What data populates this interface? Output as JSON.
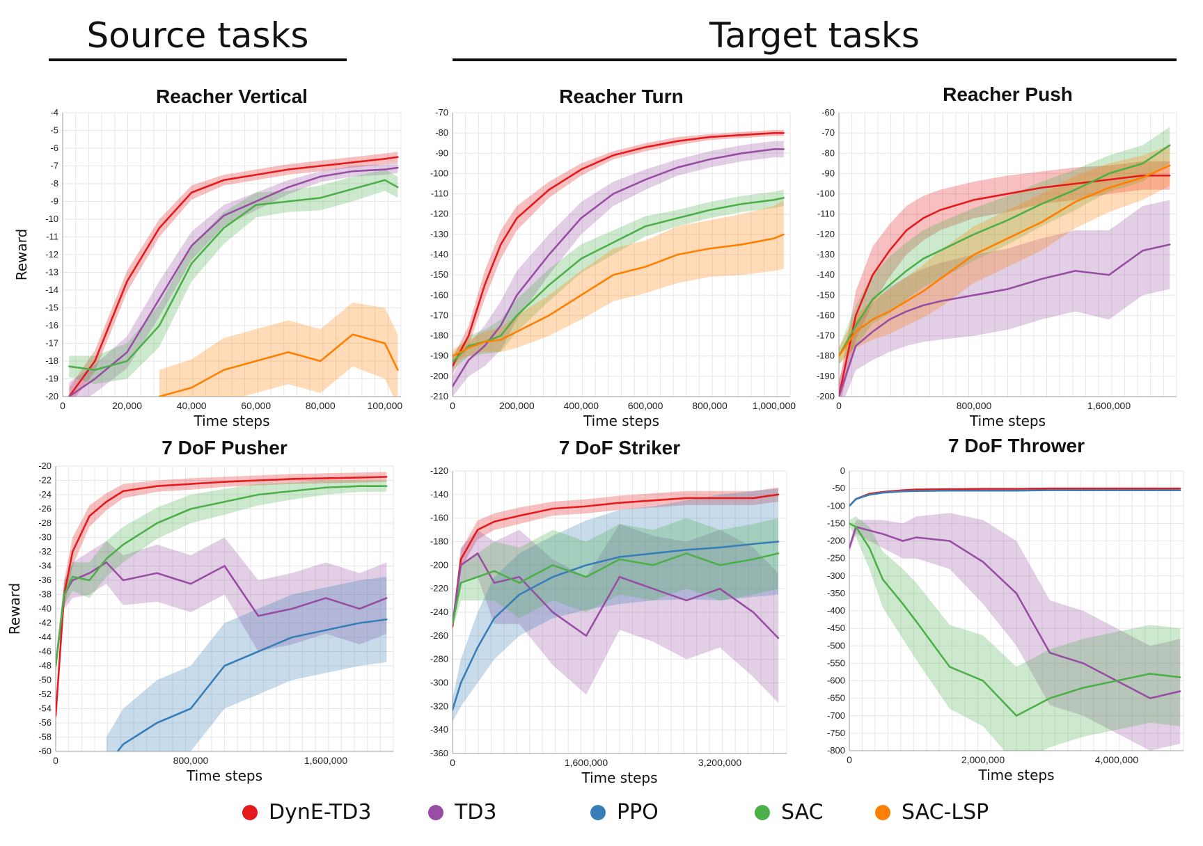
{
  "headers": {
    "source": "Source tasks",
    "target": "Target tasks"
  },
  "legend": [
    {
      "label": "DynE-TD3",
      "color": "#e41a1c"
    },
    {
      "label": "TD3",
      "color": "#984ea3"
    },
    {
      "label": "PPO",
      "color": "#377eb8"
    },
    {
      "label": "SAC",
      "color": "#4daf4a"
    },
    {
      "label": "SAC-LSP",
      "color": "#ff7f00"
    }
  ],
  "colors": {
    "DynE-TD3": "#e41a1c",
    "TD3": "#984ea3",
    "PPO": "#377eb8",
    "SAC": "#4daf4a",
    "SAC-LSP": "#ff7f00"
  },
  "chart_data": [
    {
      "type": "line",
      "title": "Reacher Vertical",
      "xlabel": "Time steps",
      "ylabel": "Reward",
      "xlim": [
        0,
        105000
      ],
      "ylim": [
        -20,
        -4
      ],
      "xticks": [
        0,
        20000,
        40000,
        60000,
        80000,
        100000
      ],
      "xtick_labels": [
        "0",
        "20,000",
        "40,000",
        "60,000",
        "80,000",
        "100,000"
      ],
      "yticks": [
        -4,
        -5,
        -6,
        -7,
        -8,
        -9,
        -10,
        -11,
        -12,
        -13,
        -14,
        -15,
        -16,
        -17,
        -18,
        -19,
        -20
      ],
      "grid": true,
      "x": [
        2000,
        10000,
        20000,
        30000,
        40000,
        50000,
        60000,
        70000,
        80000,
        90000,
        100000,
        104000
      ],
      "series": [
        {
          "name": "DynE-TD3",
          "values": [
            -20,
            -18,
            -13.5,
            -10.5,
            -8.5,
            -7.8,
            -7.5,
            -7.2,
            -7,
            -6.8,
            -6.6,
            -6.5
          ],
          "spread": [
            0.5,
            0.6,
            0.6,
            0.5,
            0.4,
            0.3,
            0.3,
            0.3,
            0.3,
            0.3,
            0.3,
            0.3
          ]
        },
        {
          "name": "TD3",
          "values": [
            -20,
            -19,
            -17.5,
            -14.5,
            -11.5,
            -9.8,
            -9,
            -8.2,
            -7.6,
            -7.3,
            -7.2,
            -7.1
          ],
          "spread": [
            0.8,
            0.8,
            0.9,
            1,
            0.8,
            0.6,
            0.5,
            0.4,
            0.3,
            0.3,
            0.3,
            0.3
          ]
        },
        {
          "name": "SAC",
          "values": [
            -18.3,
            -18.5,
            -18,
            -16,
            -12.5,
            -10.5,
            -9.2,
            -9,
            -8.8,
            -8.3,
            -7.8,
            -8.2
          ],
          "spread": [
            0.6,
            0.8,
            1,
            1.2,
            1,
            0.9,
            0.7,
            0.6,
            0.7,
            0.7,
            0.6,
            0.6
          ]
        },
        {
          "name": "SAC-LSP",
          "values": [
            null,
            null,
            null,
            -20,
            -19.5,
            -18.5,
            -18,
            -17.5,
            -18,
            -16.5,
            -17,
            -18.5
          ],
          "spread": [
            0,
            0,
            0,
            1.5,
            1.6,
            1.8,
            1.8,
            1.8,
            1.8,
            1.8,
            2,
            2
          ]
        }
      ]
    },
    {
      "type": "line",
      "title": "Reacher Turn",
      "xlabel": "Time steps",
      "ylabel": "",
      "xlim": [
        0,
        1050000
      ],
      "ylim": [
        -210,
        -70
      ],
      "xticks": [
        0,
        200000,
        400000,
        600000,
        800000,
        1000000
      ],
      "xtick_labels": [
        "0",
        "200,000",
        "400,000",
        "600,000",
        "800,000",
        "1,000,000"
      ],
      "yticks": [
        -70,
        -80,
        -90,
        -100,
        -110,
        -120,
        -130,
        -140,
        -150,
        -160,
        -170,
        -180,
        -190,
        -200,
        -210
      ],
      "grid": true,
      "x": [
        0,
        50000,
        100000,
        150000,
        200000,
        300000,
        400000,
        500000,
        600000,
        700000,
        800000,
        900000,
        1000000,
        1030000
      ],
      "series": [
        {
          "name": "DynE-TD3",
          "values": [
            -195,
            -180,
            -155,
            -135,
            -122,
            -108,
            -98,
            -91,
            -87,
            -84,
            -82,
            -81,
            -80,
            -80
          ],
          "spread": [
            4,
            5,
            7,
            7,
            6,
            4,
            3,
            2,
            2,
            2,
            1.5,
            1.5,
            1.5,
            1.5
          ]
        },
        {
          "name": "TD3",
          "values": [
            -205,
            -192,
            -185,
            -175,
            -160,
            -140,
            -122,
            -110,
            -103,
            -97,
            -93,
            -90,
            -88,
            -88
          ],
          "spread": [
            5,
            8,
            10,
            12,
            12,
            10,
            8,
            6,
            5,
            4,
            4,
            4,
            4,
            4
          ]
        },
        {
          "name": "SAC",
          "values": [
            -193,
            -185,
            -183,
            -180,
            -170,
            -155,
            -142,
            -134,
            -126,
            -122,
            -118,
            -115,
            -113,
            -112
          ],
          "spread": [
            4,
            5,
            6,
            8,
            8,
            8,
            7,
            6,
            5,
            4,
            4,
            4,
            4,
            4
          ]
        },
        {
          "name": "SAC-LSP",
          "values": [
            -190,
            -186,
            -183,
            -182,
            -178,
            -170,
            -160,
            -150,
            -146,
            -140,
            -137,
            -135,
            -132,
            -130
          ],
          "spread": [
            3,
            4,
            5,
            6,
            8,
            10,
            12,
            13,
            13,
            14,
            14,
            15,
            16,
            17
          ]
        }
      ]
    },
    {
      "type": "line",
      "title": "Reacher Push",
      "xlabel": "Time steps",
      "ylabel": "",
      "xlim": [
        0,
        2000000
      ],
      "ylim": [
        -200,
        -60
      ],
      "xticks": [
        0,
        800000,
        1600000
      ],
      "xtick_labels": [
        "0",
        "800,000",
        "1,600,000"
      ],
      "yticks": [
        -60,
        -70,
        -80,
        -90,
        -100,
        -110,
        -120,
        -130,
        -140,
        -150,
        -160,
        -170,
        -180,
        -190,
        -200
      ],
      "grid": true,
      "x": [
        0,
        100000,
        200000,
        300000,
        400000,
        500000,
        600000,
        800000,
        1000000,
        1200000,
        1400000,
        1600000,
        1800000,
        1960000
      ],
      "series": [
        {
          "name": "DynE-TD3",
          "values": [
            -200,
            -160,
            -140,
            -128,
            -118,
            -112,
            -108,
            -103,
            -100,
            -97,
            -95,
            -93,
            -91,
            -91
          ],
          "spread": [
            6,
            12,
            14,
            13,
            12,
            11,
            10,
            9,
            9,
            8,
            8,
            7,
            7,
            7
          ]
        },
        {
          "name": "TD3",
          "values": [
            -200,
            -175,
            -168,
            -162,
            -158,
            -155,
            -153,
            -150,
            -147,
            -142,
            -138,
            -140,
            -128,
            -125
          ],
          "spread": [
            8,
            12,
            14,
            16,
            17,
            18,
            19,
            20,
            20,
            20,
            20,
            22,
            22,
            22
          ]
        },
        {
          "name": "SAC",
          "values": [
            -180,
            -165,
            -152,
            -145,
            -138,
            -132,
            -128,
            -120,
            -113,
            -105,
            -98,
            -90,
            -85,
            -76
          ],
          "spread": [
            4,
            10,
            12,
            14,
            14,
            14,
            14,
            13,
            12,
            11,
            10,
            9,
            9,
            9
          ]
        },
        {
          "name": "SAC-LSP",
          "values": [
            -180,
            -168,
            -162,
            -158,
            -153,
            -148,
            -142,
            -130,
            -122,
            -114,
            -104,
            -97,
            -92,
            -86
          ],
          "spread": [
            4,
            8,
            10,
            11,
            12,
            13,
            14,
            14,
            14,
            14,
            13,
            12,
            11,
            10
          ]
        }
      ]
    },
    {
      "type": "line",
      "title": "7 DoF Pusher",
      "xlabel": "Time steps",
      "ylabel": "Reward",
      "xlim": [
        0,
        2000000
      ],
      "ylim": [
        -60,
        -20
      ],
      "xticks": [
        0,
        800000,
        1600000
      ],
      "xtick_labels": [
        "0",
        "800,000",
        "1,600,000"
      ],
      "yticks": [
        -20,
        -22,
        -24,
        -26,
        -28,
        -30,
        -32,
        -34,
        -36,
        -38,
        -40,
        -42,
        -44,
        -46,
        -48,
        -50,
        -52,
        -54,
        -56,
        -58,
        -60
      ],
      "grid": true,
      "x": [
        0,
        50000,
        100000,
        200000,
        300000,
        400000,
        600000,
        800000,
        1000000,
        1200000,
        1400000,
        1600000,
        1800000,
        1960000
      ],
      "series": [
        {
          "name": "DynE-TD3",
          "values": [
            -55,
            -38,
            -32,
            -27,
            -25,
            -23.5,
            -22.8,
            -22.5,
            -22.2,
            -22,
            -21.8,
            -21.7,
            -21.6,
            -21.5
          ],
          "spread": [
            1,
            2,
            2,
            1.5,
            1.2,
            1,
            0.8,
            0.8,
            0.7,
            0.7,
            0.7,
            0.7,
            0.7,
            0.7
          ]
        },
        {
          "name": "TD3",
          "values": [
            -48,
            -38,
            -36,
            -35,
            -33.5,
            -36,
            -35,
            -36.5,
            -34,
            -41,
            -40,
            -38.5,
            -40,
            -38.5
          ],
          "spread": [
            1,
            2,
            2.5,
            3,
            3,
            3.5,
            4,
            4,
            4,
            5,
            5,
            5,
            5,
            5
          ]
        },
        {
          "name": "PPO",
          "values": [
            null,
            null,
            null,
            null,
            -62,
            -59,
            -56,
            -54,
            -48,
            -46,
            -44,
            -43,
            -42,
            -41.5
          ],
          "spread": [
            0,
            0,
            0,
            0,
            4,
            5,
            6,
            6,
            6,
            6,
            6,
            6,
            6,
            6
          ]
        },
        {
          "name": "SAC",
          "values": [
            -48,
            -38,
            -35.5,
            -36,
            -33,
            -31,
            -28,
            -26,
            -25,
            -24,
            -23.5,
            -23,
            -22.8,
            -22.8
          ],
          "spread": [
            1,
            1.5,
            2,
            2.5,
            2.5,
            2.5,
            2.2,
            2,
            1.8,
            1.5,
            1.2,
            1,
            0.8,
            0.8
          ]
        }
      ]
    },
    {
      "type": "line",
      "title": "7 DoF Striker",
      "xlabel": "Time steps",
      "ylabel": "",
      "xlim": [
        0,
        4000000
      ],
      "ylim": [
        -360,
        -120
      ],
      "xticks": [
        0,
        1600000,
        3200000
      ],
      "xtick_labels": [
        "0",
        "1,600,000",
        "3,200,000"
      ],
      "yticks": [
        -120,
        -140,
        -160,
        -180,
        -200,
        -220,
        -240,
        -260,
        -280,
        -300,
        -320,
        -340,
        -360
      ],
      "grid": true,
      "x": [
        0,
        100000,
        300000,
        500000,
        800000,
        1200000,
        1600000,
        2000000,
        2400000,
        2800000,
        3200000,
        3600000,
        3900000
      ],
      "series": [
        {
          "name": "DynE-TD3",
          "values": [
            -252,
            -195,
            -170,
            -163,
            -158,
            -152,
            -150,
            -147,
            -145,
            -143,
            -143,
            -143,
            -140
          ],
          "spread": [
            5,
            8,
            8,
            7,
            7,
            6,
            6,
            6,
            6,
            6,
            6,
            6,
            6
          ]
        },
        {
          "name": "TD3",
          "values": [
            -250,
            -200,
            -190,
            -215,
            -210,
            -240,
            -260,
            -210,
            -220,
            -230,
            -220,
            -240,
            -262
          ],
          "spread": [
            5,
            15,
            20,
            35,
            40,
            45,
            50,
            45,
            45,
            50,
            50,
            55,
            55
          ]
        },
        {
          "name": "PPO",
          "values": [
            -323,
            -300,
            -270,
            -245,
            -225,
            -210,
            -200,
            -193,
            -190,
            -187,
            -185,
            -182,
            -180
          ],
          "spread": [
            10,
            20,
            30,
            35,
            35,
            35,
            38,
            40,
            40,
            42,
            45,
            45,
            45
          ]
        },
        {
          "name": "SAC",
          "values": [
            -250,
            -215,
            -210,
            -205,
            -215,
            -200,
            -210,
            -195,
            -200,
            -190,
            -200,
            -195,
            -190
          ],
          "spread": [
            5,
            15,
            20,
            25,
            30,
            30,
            30,
            30,
            30,
            30,
            30,
            30,
            30
          ]
        }
      ]
    },
    {
      "type": "line",
      "title": "7 DoF Thrower",
      "xlabel": "Time steps",
      "ylabel": "",
      "xlim": [
        0,
        5000000
      ],
      "ylim": [
        -800,
        0
      ],
      "xticks": [
        0,
        2000000,
        4000000
      ],
      "xtick_labels": [
        "0",
        "2,000,000",
        "4,000,000"
      ],
      "yticks": [
        0,
        -50,
        -100,
        -150,
        -200,
        -250,
        -300,
        -350,
        -400,
        -450,
        -500,
        -550,
        -600,
        -650,
        -700,
        -750,
        -800
      ],
      "grid": true,
      "x": [
        0,
        100000,
        300000,
        500000,
        800000,
        1000000,
        1500000,
        2000000,
        2500000,
        3000000,
        3500000,
        4000000,
        4500000,
        4950000
      ],
      "series": [
        {
          "name": "DynE-TD3",
          "values": [
            -100,
            -80,
            -65,
            -60,
            -55,
            -53,
            -52,
            -51,
            -51,
            -50,
            -50,
            -50,
            -50,
            -50
          ],
          "spread": [
            3,
            3,
            2,
            2,
            2,
            2,
            2,
            2,
            2,
            2,
            2,
            2,
            2,
            2
          ]
        },
        {
          "name": "TD3",
          "values": [
            -220,
            -160,
            -170,
            -180,
            -200,
            -190,
            -200,
            -260,
            -350,
            -520,
            -550,
            -600,
            -650,
            -630
          ],
          "spread": [
            10,
            20,
            30,
            40,
            50,
            60,
            80,
            120,
            150,
            150,
            150,
            150,
            150,
            150
          ]
        },
        {
          "name": "PPO",
          "values": [
            -100,
            -80,
            -68,
            -62,
            -58,
            -57,
            -56,
            -56,
            -56,
            -55,
            -55,
            -55,
            -55,
            -55
          ],
          "spread": [
            3,
            3,
            2,
            2,
            2,
            2,
            2,
            2,
            2,
            2,
            2,
            2,
            2,
            2
          ]
        },
        {
          "name": "SAC",
          "values": [
            -150,
            -160,
            -220,
            -310,
            -380,
            -430,
            -560,
            -600,
            -700,
            -650,
            -620,
            -600,
            -580,
            -590
          ],
          "spread": [
            10,
            30,
            60,
            80,
            100,
            110,
            120,
            130,
            140,
            140,
            140,
            140,
            140,
            140
          ]
        }
      ]
    }
  ]
}
